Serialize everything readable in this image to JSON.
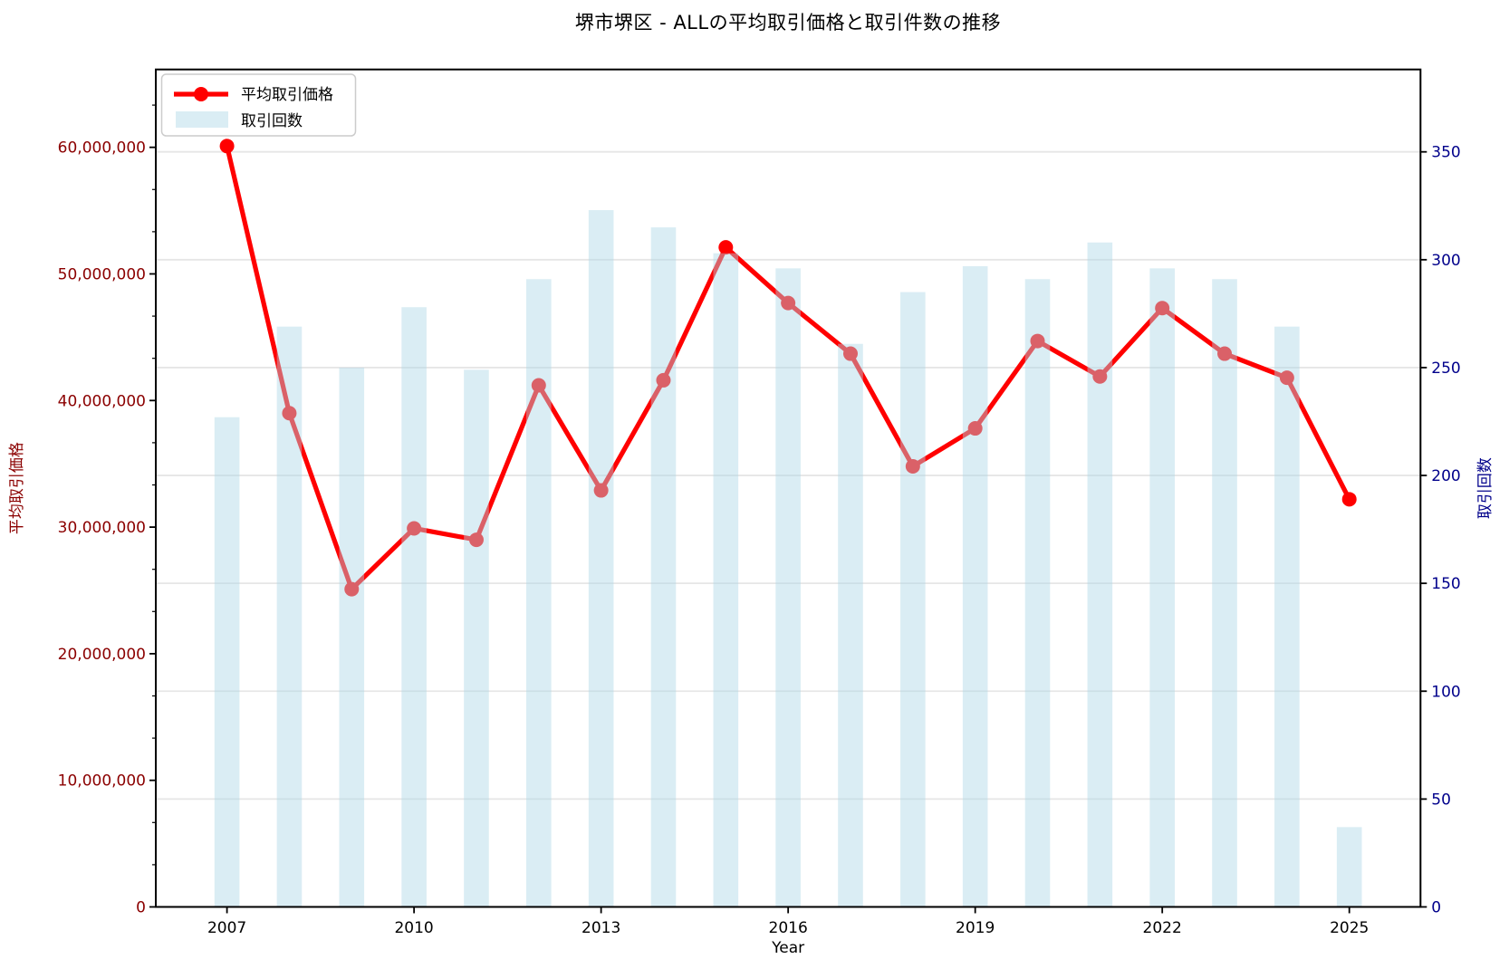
{
  "title": "堺市堺区 - ALLの平均取引価格と取引件数の推移",
  "chart_data": {
    "type": "combo",
    "title": "堺市堺区 - ALLの平均取引価格と取引件数の推移",
    "xlabel": "Year",
    "ylabel_left": "平均取引価格",
    "ylabel_right": "取引回数",
    "categories": [
      2007,
      2008,
      2009,
      2010,
      2011,
      2012,
      2013,
      2014,
      2015,
      2016,
      2017,
      2018,
      2019,
      2020,
      2021,
      2022,
      2023,
      2024,
      2025
    ],
    "series": [
      {
        "name": "平均取引価格",
        "type": "line",
        "axis": "left",
        "color": "#ff0000",
        "values": [
          60100000,
          39000000,
          25100000,
          29900000,
          29000000,
          41200000,
          32900000,
          41600000,
          52100000,
          47700000,
          43700000,
          34800000,
          37800000,
          44700000,
          41900000,
          47300000,
          43700000,
          41800000,
          32200000
        ]
      },
      {
        "name": "取引回数",
        "type": "bar",
        "axis": "right",
        "color": "#add8e6",
        "values": [
          227,
          269,
          250,
          278,
          249,
          291,
          323,
          315,
          303,
          296,
          261,
          285,
          297,
          291,
          308,
          296,
          291,
          269,
          37
        ]
      }
    ],
    "x_tick_labels": [
      "2007",
      "2010",
      "2013",
      "2016",
      "2019",
      "2022",
      "2025"
    ],
    "y_left": {
      "ticks": [
        0,
        10000000,
        20000000,
        30000000,
        40000000,
        50000000,
        60000000
      ],
      "tick_labels": [
        "0",
        "10,000,000",
        "20,000,000",
        "30,000,000",
        "40,000,000",
        "50,000,000",
        "60,000,000"
      ],
      "color": "#8b0000",
      "lim": [
        0,
        66150000
      ]
    },
    "y_right": {
      "ticks": [
        0,
        50,
        100,
        150,
        200,
        250,
        300,
        350
      ],
      "tick_labels": [
        "0",
        "50",
        "100",
        "150",
        "200",
        "250",
        "300",
        "350"
      ],
      "color": "#00008b",
      "lim": [
        0,
        388.2
      ]
    },
    "grid": {
      "on": true,
      "color": "#e6e6e6",
      "follows": "right-axis"
    },
    "legend": {
      "position": "upper-left",
      "items": [
        "平均取引価格",
        "取引回数"
      ]
    }
  }
}
